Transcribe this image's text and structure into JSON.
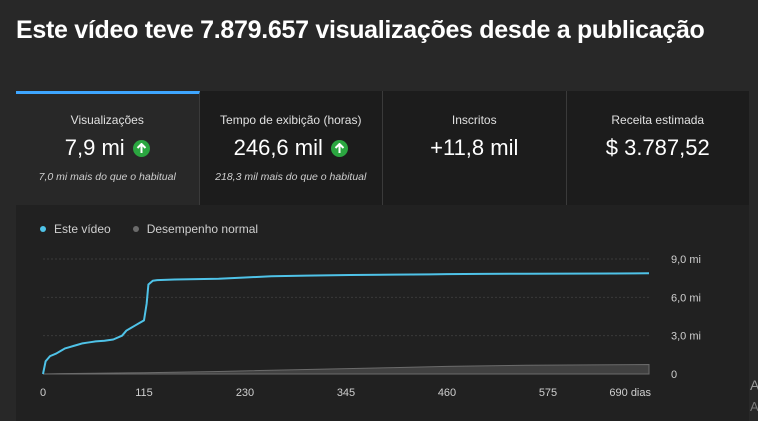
{
  "headline": "Este vídeo teve 7.879.657 visualizações desde a publicação",
  "tabs": [
    {
      "label": "Visualizações",
      "value": "7,9 mi",
      "trend": "up",
      "note": "7,0 mi mais do que o habitual"
    },
    {
      "label": "Tempo de exibição (horas)",
      "value": "246,6 mil",
      "trend": "up",
      "note": "218,3 mil mais do que o habitual"
    },
    {
      "label": "Inscritos",
      "value": "+11,8 mil",
      "note": ""
    },
    {
      "label": "Receita estimada",
      "value": "$ 3.787,52",
      "note": ""
    }
  ],
  "colors": {
    "accent": "#3ea6ff",
    "up": "#2ba640",
    "series_video": "#4fc3e8",
    "series_normal": "#6b6b6b"
  },
  "chart_data": {
    "type": "line",
    "legend": [
      "Este vídeo",
      "Desempenho normal"
    ],
    "x_ticks": [
      "0",
      "115",
      "230",
      "345",
      "460",
      "575",
      "690 dias"
    ],
    "x_tick_values": [
      0,
      115,
      230,
      345,
      460,
      575,
      690
    ],
    "y_ticks": [
      "9,0 mi",
      "6,0 mi",
      "3,0 mi",
      "0"
    ],
    "y_tick_values": [
      9.0,
      6.0,
      3.0,
      0
    ],
    "xlim": [
      0,
      690
    ],
    "ylim": [
      0,
      9.0
    ],
    "y_unit": "mi",
    "grid": true,
    "series": [
      {
        "name": "Este vídeo",
        "x": [
          0,
          3,
          8,
          15,
          20,
          25,
          30,
          35,
          40,
          45,
          50,
          55,
          60,
          70,
          80,
          90,
          95,
          100,
          105,
          110,
          115,
          118,
          120,
          125,
          130,
          150,
          200,
          230,
          260,
          300,
          350,
          400,
          440,
          460,
          500,
          550,
          600,
          650,
          690
        ],
        "y": [
          0,
          1.0,
          1.4,
          1.6,
          1.8,
          2.0,
          2.1,
          2.2,
          2.3,
          2.4,
          2.45,
          2.5,
          2.55,
          2.6,
          2.7,
          3.0,
          3.4,
          3.6,
          3.8,
          4.0,
          4.2,
          5.5,
          7.0,
          7.3,
          7.35,
          7.4,
          7.45,
          7.55,
          7.65,
          7.7,
          7.75,
          7.78,
          7.8,
          7.82,
          7.84,
          7.85,
          7.86,
          7.87,
          7.88
        ]
      },
      {
        "name": "Desempenho normal",
        "x": [
          0,
          20,
          60,
          115,
          200,
          300,
          400,
          460,
          550,
          650,
          690
        ],
        "y": [
          0,
          0.03,
          0.06,
          0.1,
          0.2,
          0.35,
          0.5,
          0.6,
          0.68,
          0.72,
          0.74
        ]
      }
    ]
  },
  "side_text": {
    "a": "A",
    "b": "A"
  }
}
